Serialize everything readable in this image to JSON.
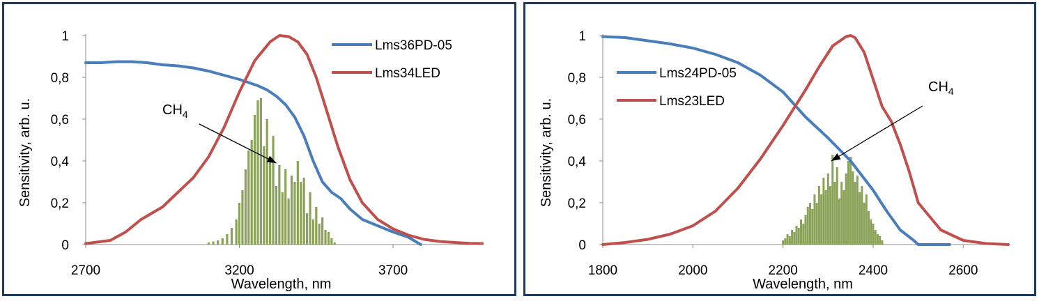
{
  "chart_data": [
    {
      "type": "line",
      "xlabel": "Wavelength, nm",
      "ylabel": "Sensitivity, arb. u.",
      "xlim": [
        2700,
        3990
      ],
      "ylim": [
        0,
        1
      ],
      "xticks": [
        2700,
        3200,
        3700
      ],
      "yticks": [
        "0",
        "0,2",
        "0,4",
        "0,6",
        "0,8",
        "1"
      ],
      "grid": false,
      "legend_position": "top-right",
      "annotation": {
        "text": "CH",
        "subscript": "4",
        "points_to": [
          3320,
          0.39
        ]
      },
      "series": [
        {
          "name": "Lms36PD-05",
          "color": "#4a7ebb",
          "x": [
            2700,
            2750,
            2800,
            2850,
            2900,
            2950,
            3000,
            3050,
            3100,
            3150,
            3200,
            3230,
            3260,
            3290,
            3320,
            3350,
            3380,
            3410,
            3440,
            3470,
            3500,
            3530,
            3560,
            3600,
            3650,
            3700,
            3750,
            3790
          ],
          "y": [
            0.87,
            0.87,
            0.875,
            0.875,
            0.87,
            0.86,
            0.855,
            0.845,
            0.83,
            0.81,
            0.79,
            0.775,
            0.76,
            0.74,
            0.71,
            0.67,
            0.61,
            0.52,
            0.4,
            0.3,
            0.25,
            0.22,
            0.17,
            0.12,
            0.09,
            0.06,
            0.035,
            0.0
          ]
        },
        {
          "name": "Lms34LED",
          "color": "#c0504d",
          "x": [
            2700,
            2780,
            2830,
            2880,
            2950,
            3000,
            3050,
            3100,
            3150,
            3200,
            3250,
            3300,
            3330,
            3360,
            3390,
            3420,
            3450,
            3480,
            3520,
            3560,
            3600,
            3650,
            3700,
            3750,
            3800,
            3850,
            3900,
            3950,
            3990
          ],
          "y": [
            0.005,
            0.02,
            0.06,
            0.12,
            0.18,
            0.25,
            0.32,
            0.42,
            0.56,
            0.73,
            0.88,
            0.97,
            1.0,
            0.995,
            0.97,
            0.91,
            0.8,
            0.66,
            0.47,
            0.31,
            0.2,
            0.12,
            0.075,
            0.045,
            0.025,
            0.015,
            0.01,
            0.006,
            0.005
          ]
        }
      ],
      "bars": {
        "name": "CH4",
        "color": "#77933c",
        "x": [
          3100,
          3115,
          3130,
          3145,
          3160,
          3175,
          3190,
          3200,
          3210,
          3220,
          3230,
          3240,
          3250,
          3260,
          3270,
          3280,
          3290,
          3300,
          3310,
          3320,
          3330,
          3340,
          3350,
          3360,
          3370,
          3380,
          3390,
          3400,
          3410,
          3420,
          3430,
          3440,
          3450,
          3460,
          3470,
          3480,
          3490,
          3500,
          3510
        ],
        "y": [
          0.01,
          0.015,
          0.02,
          0.03,
          0.05,
          0.08,
          0.12,
          0.2,
          0.26,
          0.36,
          0.45,
          0.5,
          0.62,
          0.69,
          0.7,
          0.47,
          0.6,
          0.42,
          0.52,
          0.28,
          0.38,
          0.25,
          0.36,
          0.22,
          0.33,
          0.3,
          0.4,
          0.3,
          0.32,
          0.15,
          0.25,
          0.12,
          0.18,
          0.1,
          0.13,
          0.07,
          0.06,
          0.03,
          0.01
        ]
      }
    },
    {
      "type": "line",
      "xlabel": "Wavelength, nm",
      "ylabel": "Sensitivity, arb. u.",
      "xlim": [
        1800,
        2700
      ],
      "ylim": [
        0,
        1
      ],
      "xticks": [
        1800,
        2000,
        2200,
        2400,
        2600
      ],
      "yticks": [
        "0",
        "0,2",
        "0,4",
        "0,6",
        "0,8",
        "1"
      ],
      "grid": false,
      "legend_position": "top-left",
      "annotation": {
        "text": "CH",
        "subscript": "4",
        "points_to": [
          2307,
          0.4
        ]
      },
      "series": [
        {
          "name": "Lms24PD-05",
          "color": "#4a7ebb",
          "x": [
            1800,
            1850,
            1900,
            1950,
            2000,
            2050,
            2100,
            2150,
            2200,
            2250,
            2300,
            2350,
            2400,
            2430,
            2460,
            2490,
            2500,
            2520,
            2570
          ],
          "y": [
            0.995,
            0.99,
            0.975,
            0.96,
            0.94,
            0.91,
            0.87,
            0.81,
            0.73,
            0.61,
            0.51,
            0.4,
            0.26,
            0.16,
            0.07,
            0.02,
            0.0,
            0.0,
            0.0
          ]
        },
        {
          "name": "Lms23LED",
          "color": "#c0504d",
          "x": [
            1800,
            1850,
            1900,
            1950,
            2000,
            2050,
            2100,
            2150,
            2200,
            2250,
            2280,
            2310,
            2340,
            2350,
            2360,
            2380,
            2400,
            2420,
            2440,
            2460,
            2480,
            2500,
            2550,
            2600,
            2650,
            2700
          ],
          "y": [
            0.0,
            0.01,
            0.025,
            0.05,
            0.09,
            0.16,
            0.27,
            0.41,
            0.57,
            0.74,
            0.85,
            0.95,
            0.995,
            1.0,
            0.99,
            0.92,
            0.79,
            0.66,
            0.59,
            0.48,
            0.35,
            0.2,
            0.07,
            0.02,
            0.005,
            0.0
          ]
        }
      ],
      "bars": {
        "name": "CH4",
        "color": "#77933c",
        "x": [
          2200,
          2205,
          2210,
          2215,
          2220,
          2225,
          2230,
          2235,
          2240,
          2245,
          2250,
          2255,
          2260,
          2265,
          2270,
          2275,
          2280,
          2285,
          2290,
          2295,
          2300,
          2305,
          2310,
          2315,
          2320,
          2325,
          2330,
          2335,
          2340,
          2345,
          2350,
          2355,
          2360,
          2365,
          2370,
          2375,
          2380,
          2385,
          2390,
          2395,
          2400,
          2405,
          2410,
          2415,
          2420
        ],
        "y": [
          0.02,
          0.03,
          0.05,
          0.04,
          0.07,
          0.06,
          0.09,
          0.08,
          0.12,
          0.1,
          0.14,
          0.18,
          0.2,
          0.17,
          0.24,
          0.2,
          0.28,
          0.24,
          0.32,
          0.26,
          0.34,
          0.28,
          0.43,
          0.3,
          0.37,
          0.22,
          0.3,
          0.26,
          0.34,
          0.4,
          0.42,
          0.35,
          0.3,
          0.33,
          0.25,
          0.28,
          0.2,
          0.24,
          0.16,
          0.12,
          0.1,
          0.07,
          0.05,
          0.04,
          0.02
        ]
      }
    }
  ]
}
